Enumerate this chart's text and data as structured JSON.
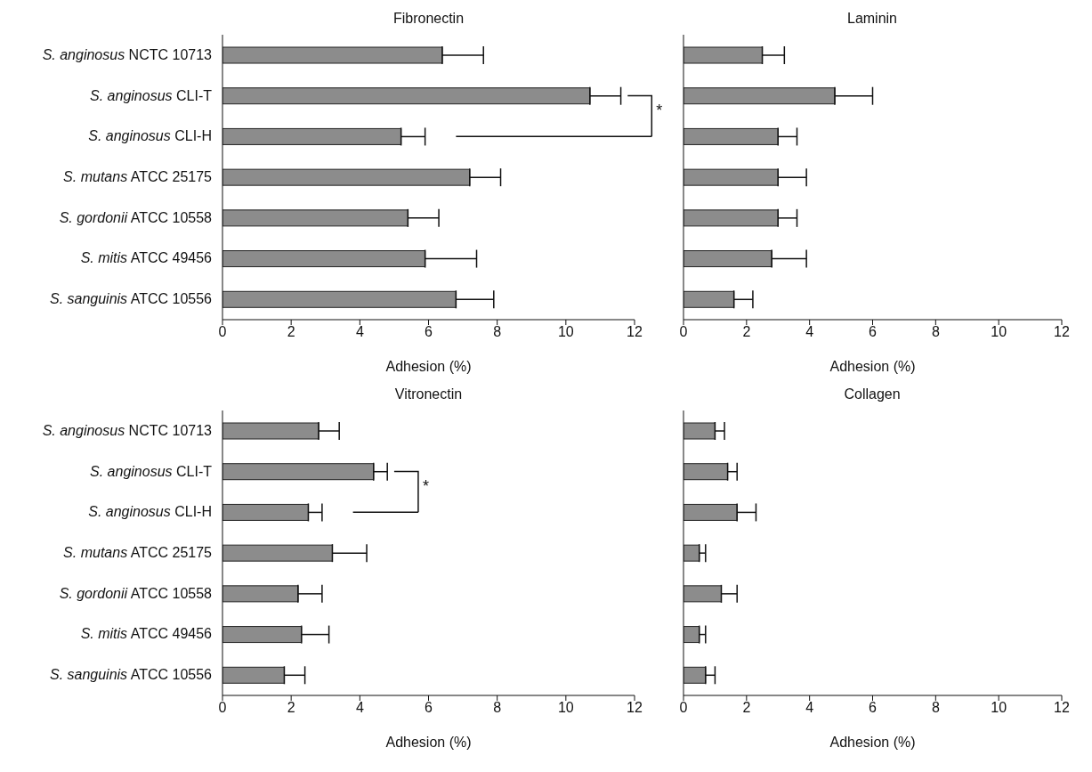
{
  "chart_data": [
    {
      "type": "bar",
      "orientation": "horizontal",
      "title": "Fibronectin",
      "xlabel": "Adhesion (%)",
      "categories": [
        "S. anginosus NCTC 10713",
        "S. anginosus CLI-T",
        "S. anginosus CLI-H",
        "S. mutans ATCC 25175",
        "S. gordonii ATCC 10558",
        "S. mitis ATCC 49456",
        "S. sanguinis ATCC 10556"
      ],
      "values": [
        6.4,
        10.7,
        5.2,
        7.2,
        5.4,
        5.9,
        6.8
      ],
      "errors": [
        [
          6.4,
          7.6
        ],
        [
          10.7,
          11.6
        ],
        [
          5.2,
          5.9
        ],
        [
          7.2,
          8.1
        ],
        [
          5.4,
          6.3
        ],
        [
          5.9,
          7.4
        ],
        [
          6.8,
          7.9
        ]
      ],
      "color": "#8c8c8c",
      "xlim": [
        0,
        12
      ],
      "xticks": [
        0,
        2,
        4,
        6,
        8,
        10,
        12
      ],
      "annotations": [
        "*"
      ]
    },
    {
      "type": "bar",
      "orientation": "horizontal",
      "title": "Laminin",
      "xlabel": "Adhesion (%)",
      "categories": [
        null,
        null,
        null,
        null,
        null,
        null,
        null
      ],
      "values": [
        2.5,
        4.8,
        3.0,
        3.0,
        3.0,
        2.8,
        1.6
      ],
      "errors": [
        [
          2.5,
          3.2
        ],
        [
          4.8,
          6.0
        ],
        [
          3.0,
          3.6
        ],
        [
          3.0,
          3.9
        ],
        [
          3.0,
          3.6
        ],
        [
          2.8,
          3.9
        ],
        [
          1.6,
          2.2
        ]
      ],
      "color": "#8c8c8c",
      "xlim": [
        0,
        12
      ],
      "xticks": [
        0,
        2,
        4,
        6,
        8,
        10,
        12
      ],
      "tick_labels": "x"
    },
    {
      "type": "bar",
      "orientation": "horizontal",
      "title": "Vitronectin",
      "xlabel": "Adhesion (%)",
      "categories": [
        "S. anginosus NCTC 10713",
        "S. anginosus CLI-T",
        "S. anginosus CLI-H",
        "S. mutans ATCC 25175",
        "S. gordonii ATCC 10558",
        "S. mitis ATCC 49456",
        "S. sanguinis ATCC 10556"
      ],
      "values": [
        2.8,
        4.4,
        2.5,
        3.2,
        2.2,
        2.3,
        1.8
      ],
      "errors": [
        [
          2.8,
          3.4
        ],
        [
          4.4,
          4.8
        ],
        [
          2.5,
          2.9
        ],
        [
          3.2,
          4.2
        ],
        [
          2.2,
          2.9
        ],
        [
          2.3,
          3.1
        ],
        [
          1.8,
          2.4
        ]
      ],
      "color": "#8c8c8c",
      "xlim": [
        0,
        12
      ],
      "xticks": [
        0,
        2,
        4,
        6,
        8,
        10,
        12
      ],
      "annotations": [
        "*"
      ]
    },
    {
      "type": "bar",
      "orientation": "horizontal",
      "title": "Collagen",
      "xlabel": "Adhesion (%)",
      "categories": [
        null,
        null,
        null,
        null,
        null,
        null,
        null
      ],
      "values": [
        1.0,
        1.4,
        1.7,
        0.5,
        1.2,
        0.5,
        0.7
      ],
      "errors": [
        [
          1.0,
          1.3
        ],
        [
          1.4,
          1.7
        ],
        [
          1.7,
          2.3
        ],
        [
          0.5,
          0.7
        ],
        [
          1.2,
          1.7
        ],
        [
          0.5,
          0.7
        ],
        [
          0.7,
          1.0
        ]
      ],
      "color": "#8c8c8c",
      "xlim": [
        0,
        12
      ],
      "xticks": [
        0,
        2,
        4,
        6,
        8,
        10,
        12
      ],
      "tick_labels": "x"
    }
  ]
}
